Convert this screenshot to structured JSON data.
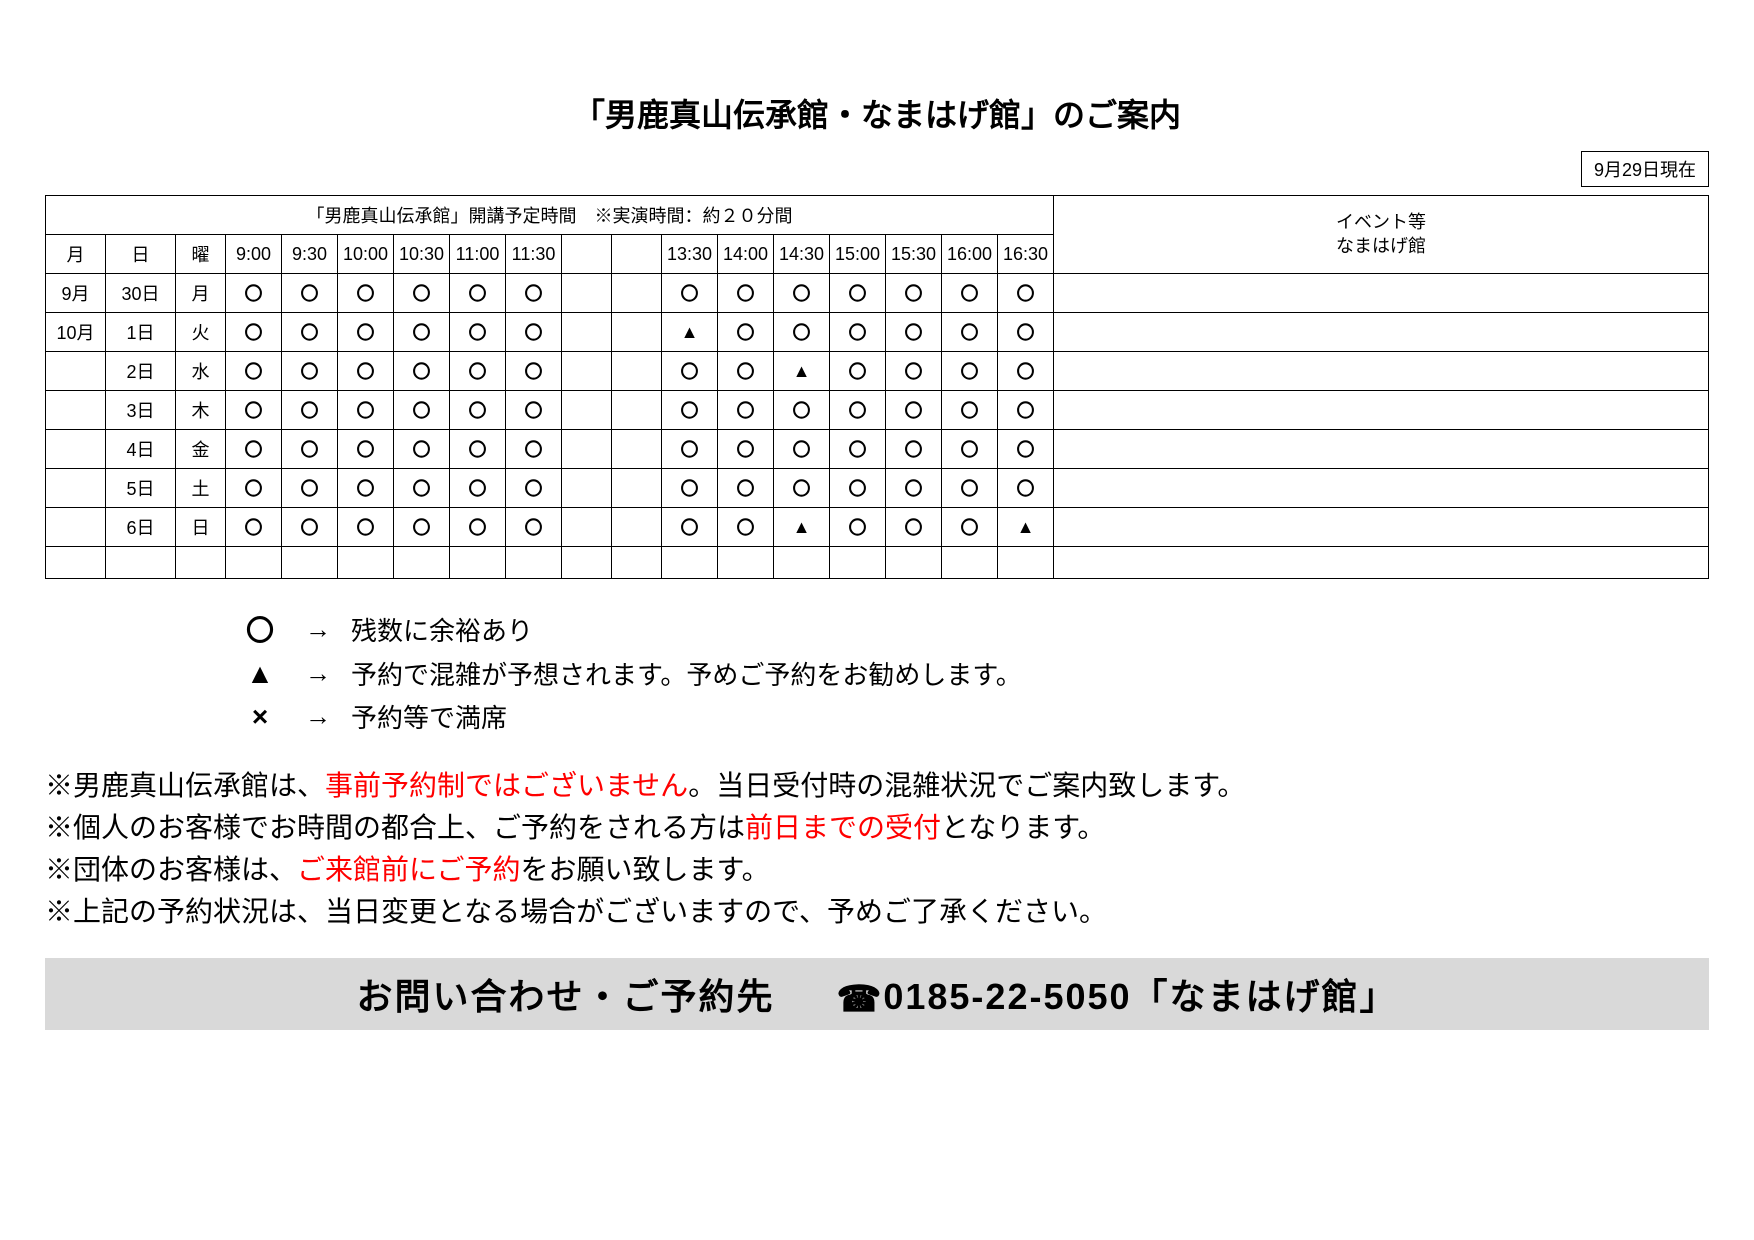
{
  "title": "「男鹿真山伝承館・なまはげ館」のご案内",
  "asof": "9月29日現在",
  "table": {
    "header_main": "「男鹿真山伝承館」開講予定時間　※実演時間：約２０分間",
    "header_side": "イベント等\nなまはげ館",
    "cols": {
      "month": "月",
      "day": "日",
      "dow": "曜"
    },
    "times": [
      "9:00",
      "9:30",
      "10:00",
      "10:30",
      "11:00",
      "11:30",
      "",
      "",
      "13:30",
      "14:00",
      "14:30",
      "15:00",
      "15:30",
      "16:00",
      "16:30"
    ],
    "rows": [
      {
        "month": "9月",
        "day": "30日",
        "dow": "月",
        "slots": [
          "〇",
          "〇",
          "〇",
          "〇",
          "〇",
          "〇",
          "",
          "",
          "〇",
          "〇",
          "〇",
          "〇",
          "〇",
          "〇",
          "〇"
        ],
        "event": ""
      },
      {
        "month": "10月",
        "day": "1日",
        "dow": "火",
        "slots": [
          "〇",
          "〇",
          "〇",
          "〇",
          "〇",
          "〇",
          "",
          "",
          "▲",
          "〇",
          "〇",
          "〇",
          "〇",
          "〇",
          "〇"
        ],
        "event": ""
      },
      {
        "month": "",
        "day": "2日",
        "dow": "水",
        "slots": [
          "〇",
          "〇",
          "〇",
          "〇",
          "〇",
          "〇",
          "",
          "",
          "〇",
          "〇",
          "▲",
          "〇",
          "〇",
          "〇",
          "〇"
        ],
        "event": ""
      },
      {
        "month": "",
        "day": "3日",
        "dow": "木",
        "slots": [
          "〇",
          "〇",
          "〇",
          "〇",
          "〇",
          "〇",
          "",
          "",
          "〇",
          "〇",
          "〇",
          "〇",
          "〇",
          "〇",
          "〇"
        ],
        "event": ""
      },
      {
        "month": "",
        "day": "4日",
        "dow": "金",
        "slots": [
          "〇",
          "〇",
          "〇",
          "〇",
          "〇",
          "〇",
          "",
          "",
          "〇",
          "〇",
          "〇",
          "〇",
          "〇",
          "〇",
          "〇"
        ],
        "event": ""
      },
      {
        "month": "",
        "day": "5日",
        "dow": "土",
        "slots": [
          "〇",
          "〇",
          "〇",
          "〇",
          "〇",
          "〇",
          "",
          "",
          "〇",
          "〇",
          "〇",
          "〇",
          "〇",
          "〇",
          "〇"
        ],
        "event": ""
      },
      {
        "month": "",
        "day": "6日",
        "dow": "日",
        "slots": [
          "〇",
          "〇",
          "〇",
          "〇",
          "〇",
          "〇",
          "",
          "",
          "〇",
          "〇",
          "▲",
          "〇",
          "〇",
          "〇",
          "▲"
        ],
        "event": ""
      },
      {
        "month": "",
        "day": "",
        "dow": "",
        "slots": [
          "",
          "",
          "",
          "",
          "",
          "",
          "",
          "",
          "",
          "",
          "",
          "",
          "",
          "",
          ""
        ],
        "event": ""
      }
    ]
  },
  "legend": [
    {
      "symbol": "〇",
      "text": "残数に余裕あり"
    },
    {
      "symbol": "▲",
      "text": "予約で混雑が予想されます。予めご予約をお勧めします。"
    },
    {
      "symbol": "×",
      "text": "予約等で満席"
    }
  ],
  "legend_arrow": "→",
  "notes": [
    {
      "parts": [
        {
          "t": "※男鹿真山伝承館は、",
          "c": "black"
        },
        {
          "t": "事前予約制ではございません",
          "c": "red"
        },
        {
          "t": "。当日受付時の混雑状況でご案内致します。",
          "c": "black"
        }
      ]
    },
    {
      "parts": [
        {
          "t": "※個人のお客様でお時間の都合上、ご予約をされる方は",
          "c": "black"
        },
        {
          "t": "前日までの受付",
          "c": "red"
        },
        {
          "t": "となります。",
          "c": "black"
        }
      ]
    },
    {
      "parts": [
        {
          "t": "※団体のお客様は、",
          "c": "black"
        },
        {
          "t": "ご来館前にご予約",
          "c": "red"
        },
        {
          "t": "をお願い致します。",
          "c": "black"
        }
      ]
    },
    {
      "parts": [
        {
          "t": "※上記の予約状況は、当日変更となる場合がございますので、予めご了承ください。",
          "c": "black"
        }
      ]
    }
  ],
  "contact": {
    "label": "お問い合わせ・ご予約先",
    "phone": "0185-22-5050",
    "place": "「なまはげ館」"
  },
  "colors": {
    "red": "#ff0000",
    "grey_bg": "#d9d9d9",
    "black": "#000000"
  }
}
